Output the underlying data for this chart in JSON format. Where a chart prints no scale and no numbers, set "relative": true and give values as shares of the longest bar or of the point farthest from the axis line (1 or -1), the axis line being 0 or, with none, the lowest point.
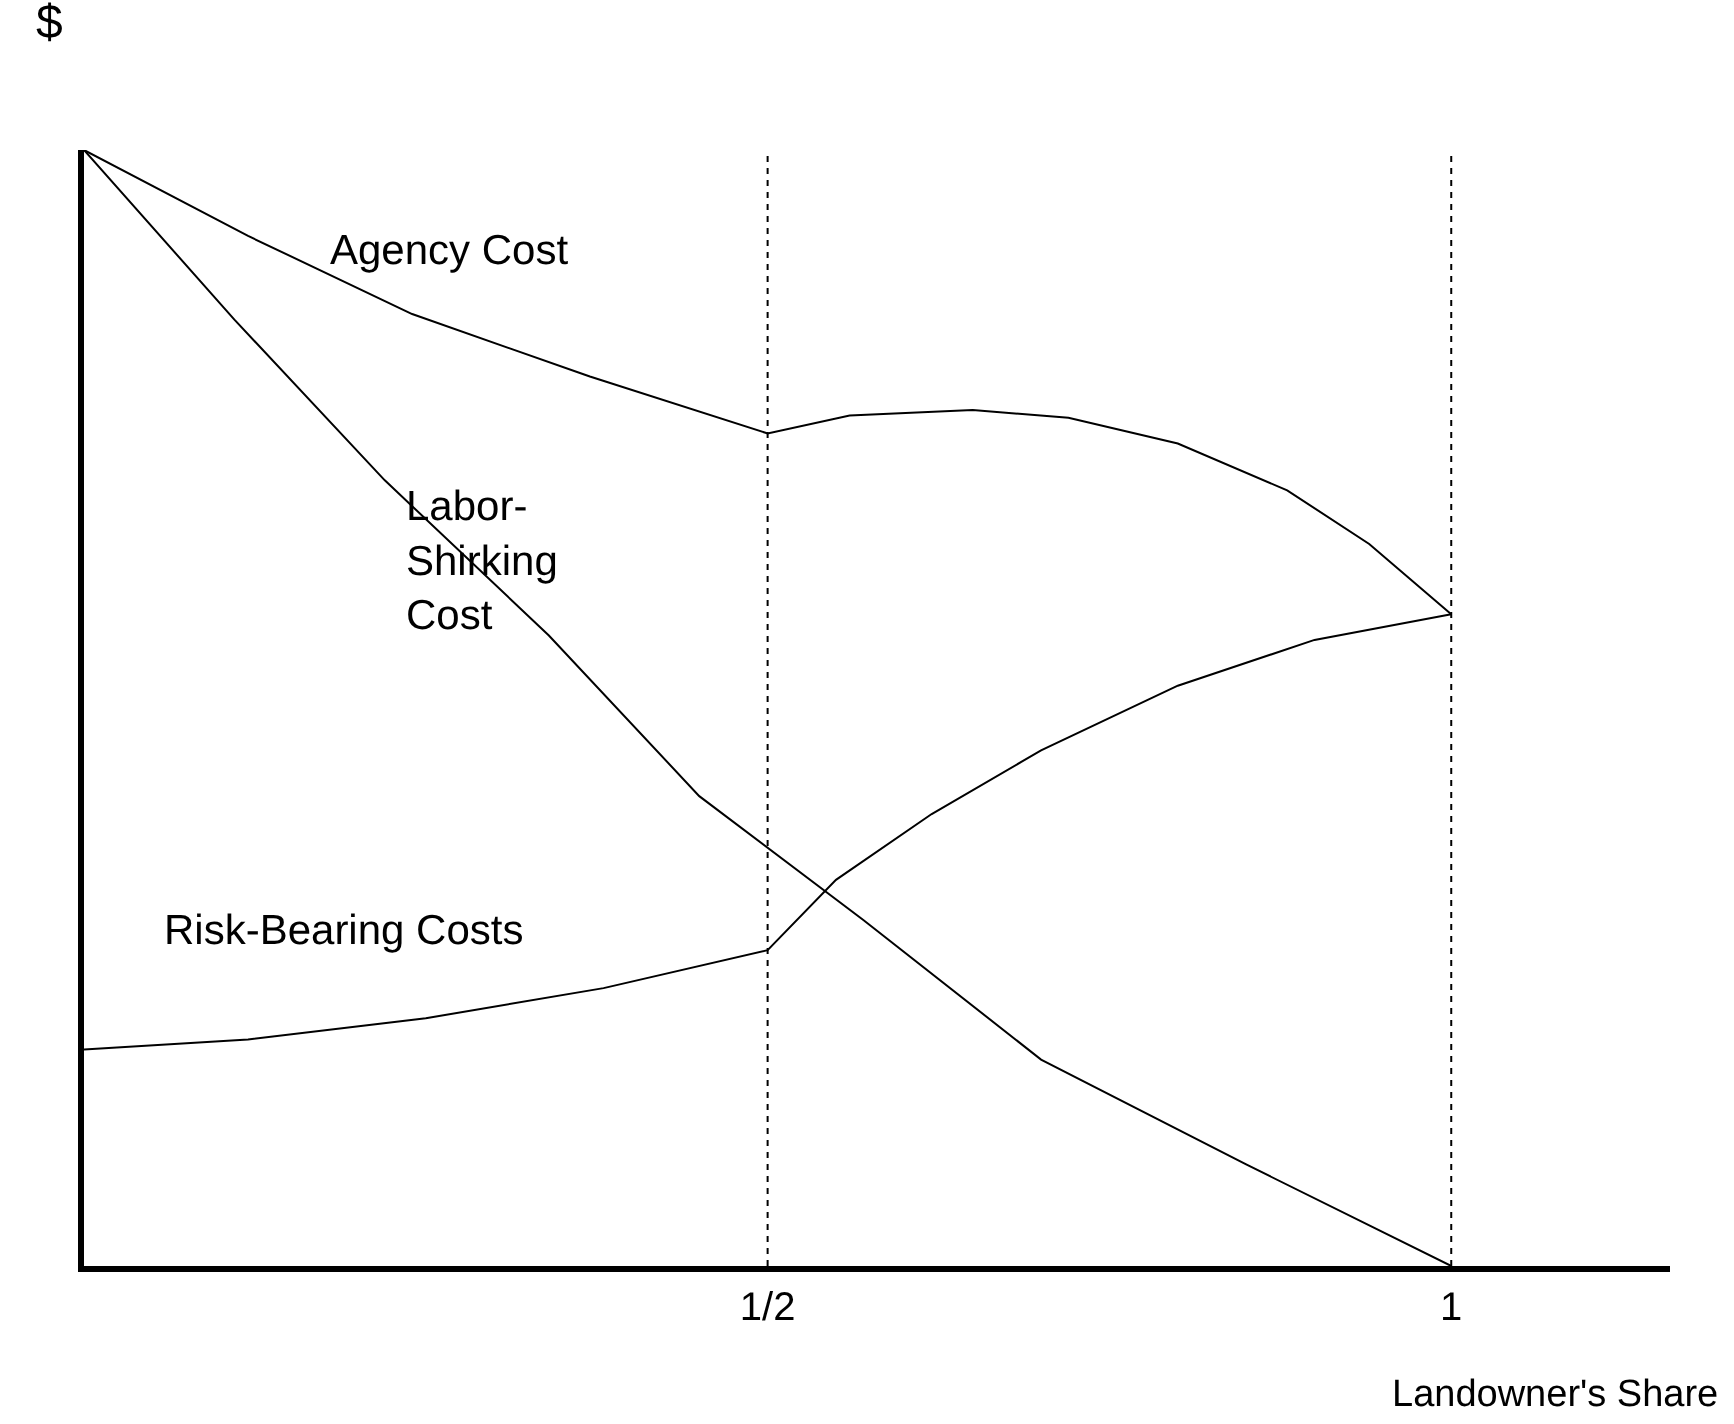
{
  "chart_data": {
    "type": "line",
    "relative": true,
    "xlabel": "Landowner's Share",
    "ylabel": "$",
    "xlim": [
      0,
      1.16
    ],
    "xticks": [
      {
        "value": 0.5,
        "label": "1/2"
      },
      1
    ],
    "legend": false,
    "marker": "none",
    "line_style": "solid",
    "series": [
      {
        "name": "Agency Cost",
        "color": "#000000",
        "x": [
          0,
          0.12,
          0.24,
          0.37,
          0.5,
          0.56,
          0.65,
          0.72,
          0.8,
          0.88,
          0.94,
          1
        ],
        "values": [
          1,
          0.923,
          0.853,
          0.797,
          0.746,
          0.762,
          0.767,
          0.76,
          0.737,
          0.695,
          0.647,
          0.584
        ]
      },
      {
        "name": "Labor-Shirking Cost",
        "color": "#000000",
        "x": [
          0,
          0.11,
          0.22,
          0.34,
          0.45,
          0.57,
          0.7,
          0.85,
          1
        ],
        "values": [
          1,
          0.848,
          0.704,
          0.565,
          0.421,
          0.31,
          0.185,
          0.091,
          0
        ]
      },
      {
        "name": "Risk-Bearing Costs",
        "color": "#000000",
        "x": [
          0,
          0.12,
          0.25,
          0.38,
          0.5,
          0.55,
          0.62,
          0.7,
          0.8,
          0.9,
          1
        ],
        "values": [
          0.194,
          0.203,
          0.222,
          0.249,
          0.283,
          0.346,
          0.405,
          0.462,
          0.52,
          0.561,
          0.584
        ]
      }
    ],
    "ref_lines": [
      {
        "axis": "x",
        "value": 0.5,
        "line_style": "dotted",
        "color": "#000000"
      },
      {
        "axis": "x",
        "value": 1,
        "line_style": "dotted",
        "color": "#000000"
      }
    ]
  }
}
